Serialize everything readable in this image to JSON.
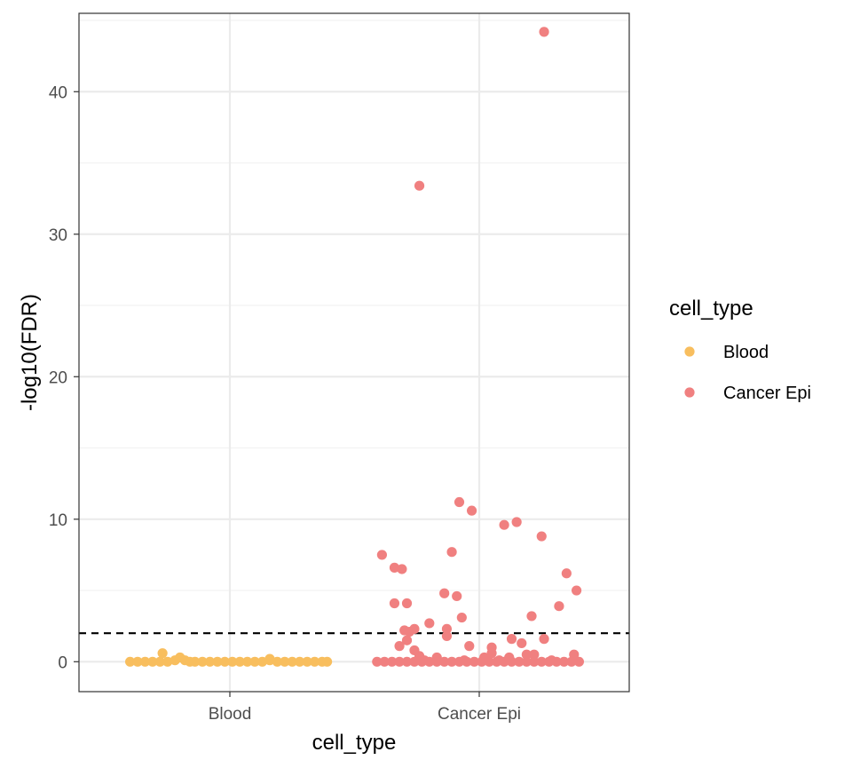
{
  "chart_data": {
    "type": "scatter",
    "subtype": "jitter-strip",
    "xlabel": "cell_type",
    "ylabel": "-log10(FDR)",
    "categories": [
      "Blood",
      "Cancer Epi"
    ],
    "ylim": [
      -2.1,
      45.5
    ],
    "yticks": [
      0,
      10,
      20,
      30,
      40
    ],
    "grid": true,
    "threshold_line": {
      "y": 2,
      "style": "dashed",
      "color": "#000000"
    },
    "legend": {
      "title": "cell_type",
      "position": "right",
      "entries": [
        "Blood",
        "Cancer Epi"
      ]
    },
    "series": [
      {
        "name": "Blood",
        "color": "#F8BE5E",
        "points": [
          {
            "x": -0.4,
            "y": 0
          },
          {
            "x": -0.37,
            "y": 0
          },
          {
            "x": -0.34,
            "y": 0
          },
          {
            "x": -0.31,
            "y": 0
          },
          {
            "x": -0.28,
            "y": 0
          },
          {
            "x": -0.25,
            "y": 0
          },
          {
            "x": -0.22,
            "y": 0.1
          },
          {
            "x": -0.2,
            "y": 0.3
          },
          {
            "x": -0.18,
            "y": 0.1
          },
          {
            "x": -0.16,
            "y": 0
          },
          {
            "x": -0.14,
            "y": 0
          },
          {
            "x": -0.11,
            "y": 0
          },
          {
            "x": -0.08,
            "y": 0
          },
          {
            "x": -0.05,
            "y": 0
          },
          {
            "x": -0.02,
            "y": 0
          },
          {
            "x": 0.01,
            "y": 0
          },
          {
            "x": 0.04,
            "y": 0
          },
          {
            "x": 0.07,
            "y": 0
          },
          {
            "x": 0.1,
            "y": 0
          },
          {
            "x": 0.13,
            "y": 0
          },
          {
            "x": 0.16,
            "y": 0.1
          },
          {
            "x": 0.19,
            "y": 0
          },
          {
            "x": 0.22,
            "y": 0
          },
          {
            "x": 0.25,
            "y": 0
          },
          {
            "x": 0.28,
            "y": 0
          },
          {
            "x": 0.31,
            "y": 0
          },
          {
            "x": 0.34,
            "y": 0
          },
          {
            "x": 0.37,
            "y": 0
          },
          {
            "x": 0.39,
            "y": 0
          },
          {
            "x": -0.27,
            "y": 0.6
          },
          {
            "x": 0.16,
            "y": 0.2
          }
        ]
      },
      {
        "name": "Cancer Epi",
        "color": "#F08080",
        "points": [
          {
            "x": 0.26,
            "y": 44.2
          },
          {
            "x": -0.24,
            "y": 33.4
          },
          {
            "x": -0.08,
            "y": 11.2
          },
          {
            "x": -0.03,
            "y": 10.6
          },
          {
            "x": 0.1,
            "y": 9.6
          },
          {
            "x": 0.15,
            "y": 9.8
          },
          {
            "x": 0.25,
            "y": 8.8
          },
          {
            "x": -0.11,
            "y": 7.7
          },
          {
            "x": -0.39,
            "y": 7.5
          },
          {
            "x": -0.34,
            "y": 6.6
          },
          {
            "x": -0.31,
            "y": 6.5
          },
          {
            "x": 0.35,
            "y": 6.2
          },
          {
            "x": 0.39,
            "y": 5.0
          },
          {
            "x": -0.14,
            "y": 4.8
          },
          {
            "x": -0.09,
            "y": 4.6
          },
          {
            "x": -0.34,
            "y": 4.1
          },
          {
            "x": -0.29,
            "y": 4.1
          },
          {
            "x": 0.32,
            "y": 3.9
          },
          {
            "x": 0.21,
            "y": 3.2
          },
          {
            "x": -0.07,
            "y": 3.1
          },
          {
            "x": -0.2,
            "y": 2.7
          },
          {
            "x": -0.26,
            "y": 2.3
          },
          {
            "x": -0.13,
            "y": 2.3
          },
          {
            "x": -0.3,
            "y": 2.2
          },
          {
            "x": -0.28,
            "y": 2.1
          },
          {
            "x": -0.13,
            "y": 1.8
          },
          {
            "x": 0.13,
            "y": 1.6
          },
          {
            "x": 0.26,
            "y": 1.6
          },
          {
            "x": -0.29,
            "y": 1.5
          },
          {
            "x": 0.17,
            "y": 1.3
          },
          {
            "x": -0.32,
            "y": 1.1
          },
          {
            "x": -0.04,
            "y": 1.1
          },
          {
            "x": 0.05,
            "y": 1.0
          },
          {
            "x": -0.26,
            "y": 0.8
          },
          {
            "x": 0.05,
            "y": 0.6
          },
          {
            "x": 0.19,
            "y": 0.5
          },
          {
            "x": 0.22,
            "y": 0.5
          },
          {
            "x": 0.38,
            "y": 0.5
          },
          {
            "x": -0.24,
            "y": 0.4
          },
          {
            "x": 0.02,
            "y": 0.3
          },
          {
            "x": -0.17,
            "y": 0.3
          },
          {
            "x": 0.12,
            "y": 0.3
          },
          {
            "x": -0.41,
            "y": 0
          },
          {
            "x": -0.38,
            "y": 0
          },
          {
            "x": -0.35,
            "y": 0
          },
          {
            "x": -0.32,
            "y": 0
          },
          {
            "x": -0.29,
            "y": 0
          },
          {
            "x": -0.26,
            "y": 0
          },
          {
            "x": -0.23,
            "y": 0
          },
          {
            "x": -0.2,
            "y": 0
          },
          {
            "x": -0.17,
            "y": 0
          },
          {
            "x": -0.14,
            "y": 0
          },
          {
            "x": -0.11,
            "y": 0
          },
          {
            "x": -0.08,
            "y": 0
          },
          {
            "x": -0.05,
            "y": 0
          },
          {
            "x": -0.02,
            "y": 0
          },
          {
            "x": 0.01,
            "y": 0
          },
          {
            "x": 0.04,
            "y": 0
          },
          {
            "x": 0.07,
            "y": 0
          },
          {
            "x": 0.1,
            "y": 0
          },
          {
            "x": 0.13,
            "y": 0
          },
          {
            "x": 0.16,
            "y": 0
          },
          {
            "x": 0.19,
            "y": 0
          },
          {
            "x": 0.22,
            "y": 0
          },
          {
            "x": 0.25,
            "y": 0
          },
          {
            "x": 0.28,
            "y": 0
          },
          {
            "x": 0.31,
            "y": 0
          },
          {
            "x": 0.34,
            "y": 0
          },
          {
            "x": 0.37,
            "y": 0
          },
          {
            "x": 0.4,
            "y": 0
          },
          {
            "x": -0.22,
            "y": 0.1
          },
          {
            "x": -0.06,
            "y": 0.1
          },
          {
            "x": 0.08,
            "y": 0.1
          },
          {
            "x": 0.29,
            "y": 0.1
          }
        ]
      }
    ]
  }
}
